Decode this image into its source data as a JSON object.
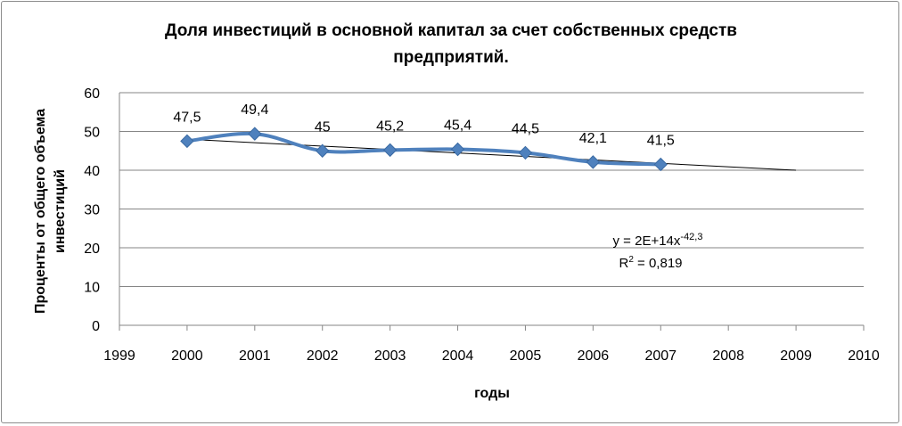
{
  "chart_data": {
    "type": "line",
    "title_line1": "Доля инвестиций в основной капитал за счет собственных средств",
    "title_line2": "предприятий.",
    "xlabel": "годы",
    "ylabel_line1": "Проценты от общего объема",
    "ylabel_line2": "инвестиций",
    "xlim": [
      1999,
      2010
    ],
    "ylim": [
      0,
      60
    ],
    "x_ticks": [
      1999,
      2000,
      2001,
      2002,
      2003,
      2004,
      2005,
      2006,
      2007,
      2008,
      2009,
      2010
    ],
    "y_ticks": [
      0,
      10,
      20,
      30,
      40,
      50,
      60
    ],
    "grid": "horizontal",
    "series": [
      {
        "x": [
          2000,
          2001,
          2002,
          2003,
          2004,
          2005,
          2006,
          2007
        ],
        "values": [
          47.5,
          49.4,
          45,
          45.2,
          45.4,
          44.5,
          42.1,
          41.5
        ],
        "data_labels": [
          "47,5",
          "49,4",
          "45",
          "45,2",
          "45,4",
          "44,5",
          "42,1",
          "41,5"
        ],
        "color": "#4f81bd",
        "marker": "diamond",
        "smooth": true
      }
    ],
    "trendline": {
      "type": "power",
      "x_range": [
        2000,
        2009
      ],
      "y_start": 48.0,
      "y_end": 40.0,
      "color": "#000000",
      "equation_prefix": "y = 2E+14x",
      "equation_exponent": "-42,3",
      "r2_prefix": "R",
      "r2_exponent": "2",
      "r2_value": " = 0,819"
    }
  }
}
